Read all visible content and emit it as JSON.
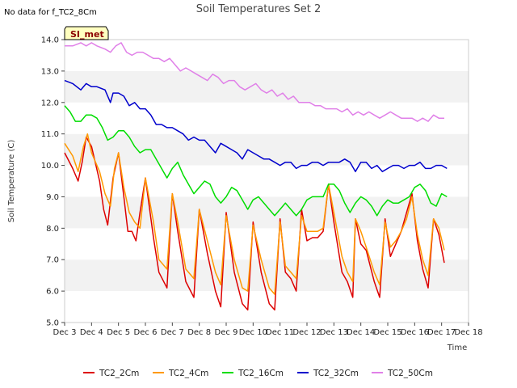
{
  "no_data_text": "No data for f_TC2_8Cm",
  "site_label": "SI_met",
  "chart_data": {
    "type": "line",
    "title": "Soil Temperatures Set 2",
    "xlabel": "Time",
    "ylabel": "Soil Temperature (C)",
    "xlim": [
      3,
      18
    ],
    "ylim": [
      5.0,
      14.0
    ],
    "x_tick_values": [
      3,
      4,
      5,
      6,
      7,
      8,
      9,
      10,
      11,
      12,
      13,
      14,
      15,
      16,
      17,
      18
    ],
    "x_tick_labels": [
      "Dec 3",
      "Dec 4",
      "Dec 5",
      "Dec 6",
      "Dec 7",
      "Dec 8",
      "Dec 9",
      "Dec 10",
      "Dec 11",
      "Dec 12",
      "Dec 13",
      "Dec 14",
      "Dec 15",
      "Dec 16",
      "Dec 17",
      "Dec 18"
    ],
    "y_tick_values": [
      5,
      6,
      7,
      8,
      9,
      10,
      11,
      12,
      13,
      14
    ],
    "y_tick_labels": [
      "5.0",
      "6.0",
      "7.0",
      "8.0",
      "9.0",
      "10.0",
      "11.0",
      "12.0",
      "13.0",
      "14.0"
    ],
    "grid": "horizontal bands",
    "legend_position": "bottom",
    "series": [
      {
        "name": "TC2_2Cm",
        "color": "#dd0000",
        "x": [
          3.0,
          3.3,
          3.5,
          3.65,
          3.8,
          4.0,
          4.3,
          4.45,
          4.6,
          4.8,
          5.0,
          5.2,
          5.35,
          5.5,
          5.65,
          5.8,
          6.0,
          6.3,
          6.5,
          6.8,
          7.0,
          7.2,
          7.5,
          7.8,
          8.0,
          8.3,
          8.6,
          8.8,
          9.0,
          9.3,
          9.6,
          9.8,
          10.0,
          10.3,
          10.6,
          10.8,
          11.0,
          11.2,
          11.4,
          11.6,
          11.8,
          12.0,
          12.2,
          12.4,
          12.6,
          12.8,
          13.0,
          13.3,
          13.5,
          13.7,
          13.8,
          14.0,
          14.2,
          14.5,
          14.7,
          14.9,
          15.1,
          15.3,
          15.5,
          15.7,
          15.9,
          16.1,
          16.3,
          16.5,
          16.7,
          16.9,
          17.1
        ],
        "y": [
          10.4,
          9.9,
          9.5,
          10.1,
          10.9,
          10.6,
          9.5,
          8.6,
          8.1,
          9.6,
          10.4,
          9.0,
          7.9,
          7.9,
          7.6,
          8.5,
          9.6,
          7.7,
          6.6,
          6.1,
          9.1,
          7.9,
          6.3,
          5.8,
          8.6,
          7.2,
          6.0,
          5.5,
          8.5,
          6.6,
          5.6,
          5.4,
          8.2,
          6.6,
          5.6,
          5.4,
          8.3,
          6.6,
          6.4,
          6.0,
          8.6,
          7.6,
          7.7,
          7.7,
          7.9,
          9.4,
          8.2,
          6.6,
          6.3,
          5.8,
          8.3,
          7.5,
          7.3,
          6.3,
          5.8,
          8.3,
          7.1,
          7.5,
          7.9,
          8.5,
          9.1,
          7.6,
          6.7,
          6.1,
          8.3,
          7.8,
          6.9
        ]
      },
      {
        "name": "TC2_4Cm",
        "color": "#ff9900",
        "x": [
          3.0,
          3.3,
          3.5,
          3.7,
          3.85,
          4.0,
          4.3,
          4.5,
          4.7,
          4.85,
          5.0,
          5.2,
          5.4,
          5.6,
          5.8,
          6.0,
          6.3,
          6.5,
          6.8,
          7.0,
          7.2,
          7.5,
          7.8,
          8.0,
          8.3,
          8.6,
          8.8,
          9.0,
          9.3,
          9.6,
          9.8,
          10.0,
          10.3,
          10.6,
          10.8,
          11.0,
          11.2,
          11.4,
          11.6,
          11.8,
          12.0,
          12.2,
          12.4,
          12.6,
          12.8,
          13.0,
          13.3,
          13.5,
          13.7,
          13.8,
          14.0,
          14.2,
          14.5,
          14.7,
          14.9,
          15.1,
          15.3,
          15.5,
          15.7,
          15.9,
          16.1,
          16.3,
          16.5,
          16.7,
          16.9,
          17.1
        ],
        "y": [
          10.7,
          10.3,
          9.8,
          10.6,
          11.0,
          10.4,
          9.8,
          9.1,
          8.7,
          9.9,
          10.4,
          9.3,
          8.5,
          8.2,
          8.0,
          9.6,
          8.2,
          7.0,
          6.7,
          9.1,
          8.2,
          6.7,
          6.4,
          8.6,
          7.6,
          6.6,
          6.2,
          8.4,
          7.0,
          6.1,
          6.0,
          8.1,
          7.0,
          6.1,
          5.9,
          8.2,
          6.8,
          6.6,
          6.4,
          8.4,
          7.9,
          7.9,
          7.9,
          8.0,
          9.4,
          8.5,
          7.1,
          6.6,
          6.3,
          8.3,
          7.9,
          7.4,
          6.6,
          6.2,
          8.2,
          7.4,
          7.6,
          7.9,
          8.3,
          9.0,
          7.8,
          7.0,
          6.5,
          8.3,
          8.0,
          7.3
        ]
      },
      {
        "name": "TC2_16Cm",
        "color": "#00dd00",
        "x": [
          3.0,
          3.2,
          3.4,
          3.6,
          3.8,
          4.0,
          4.2,
          4.4,
          4.6,
          4.8,
          5.0,
          5.2,
          5.4,
          5.6,
          5.8,
          6.0,
          6.2,
          6.4,
          6.6,
          6.8,
          7.0,
          7.2,
          7.4,
          7.6,
          7.8,
          8.0,
          8.2,
          8.4,
          8.6,
          8.8,
          9.0,
          9.2,
          9.4,
          9.6,
          9.8,
          10.0,
          10.2,
          10.4,
          10.6,
          10.8,
          11.0,
          11.2,
          11.4,
          11.6,
          11.8,
          12.0,
          12.2,
          12.4,
          12.6,
          12.8,
          13.0,
          13.2,
          13.4,
          13.6,
          13.8,
          14.0,
          14.2,
          14.4,
          14.6,
          14.8,
          15.0,
          15.2,
          15.4,
          15.6,
          15.8,
          16.0,
          16.2,
          16.4,
          16.6,
          16.8,
          17.0,
          17.2
        ],
        "y": [
          11.9,
          11.7,
          11.4,
          11.4,
          11.6,
          11.6,
          11.5,
          11.2,
          10.8,
          10.9,
          11.1,
          11.1,
          10.9,
          10.6,
          10.4,
          10.5,
          10.5,
          10.2,
          9.9,
          9.6,
          9.9,
          10.1,
          9.7,
          9.4,
          9.1,
          9.3,
          9.5,
          9.4,
          9.0,
          8.8,
          9.0,
          9.3,
          9.2,
          8.9,
          8.6,
          8.9,
          9.0,
          8.8,
          8.6,
          8.4,
          8.6,
          8.8,
          8.6,
          8.4,
          8.6,
          8.9,
          9.0,
          9.0,
          9.0,
          9.4,
          9.4,
          9.2,
          8.8,
          8.5,
          8.8,
          9.0,
          8.9,
          8.7,
          8.4,
          8.7,
          8.9,
          8.8,
          8.8,
          8.9,
          9.0,
          9.3,
          9.4,
          9.2,
          8.8,
          8.7,
          9.1,
          9.0
        ]
      },
      {
        "name": "TC2_32Cm",
        "color": "#0000cc",
        "x": [
          3.0,
          3.3,
          3.6,
          3.8,
          4.0,
          4.2,
          4.5,
          4.7,
          4.8,
          5.0,
          5.2,
          5.4,
          5.6,
          5.8,
          6.0,
          6.2,
          6.4,
          6.6,
          6.8,
          7.0,
          7.2,
          7.4,
          7.6,
          7.8,
          8.0,
          8.2,
          8.4,
          8.6,
          8.8,
          9.0,
          9.2,
          9.4,
          9.6,
          9.8,
          10.0,
          10.2,
          10.4,
          10.6,
          10.8,
          11.0,
          11.2,
          11.4,
          11.6,
          11.8,
          12.0,
          12.2,
          12.4,
          12.6,
          12.8,
          13.0,
          13.2,
          13.4,
          13.6,
          13.8,
          14.0,
          14.2,
          14.4,
          14.6,
          14.8,
          15.0,
          15.2,
          15.4,
          15.6,
          15.8,
          16.0,
          16.2,
          16.4,
          16.6,
          16.8,
          17.0,
          17.2
        ],
        "y": [
          12.7,
          12.6,
          12.4,
          12.6,
          12.5,
          12.5,
          12.4,
          12.0,
          12.3,
          12.3,
          12.2,
          11.9,
          12.0,
          11.8,
          11.8,
          11.6,
          11.3,
          11.3,
          11.2,
          11.2,
          11.1,
          11.0,
          10.8,
          10.9,
          10.8,
          10.8,
          10.6,
          10.4,
          10.7,
          10.6,
          10.5,
          10.4,
          10.2,
          10.5,
          10.4,
          10.3,
          10.2,
          10.2,
          10.1,
          10.0,
          10.1,
          10.1,
          9.9,
          10.0,
          10.0,
          10.1,
          10.1,
          10.0,
          10.1,
          10.1,
          10.1,
          10.2,
          10.1,
          9.8,
          10.1,
          10.1,
          9.9,
          10.0,
          9.8,
          9.9,
          10.0,
          10.0,
          9.9,
          10.0,
          10.0,
          10.1,
          9.9,
          9.9,
          10.0,
          10.0,
          9.9
        ]
      },
      {
        "name": "TC2_50Cm",
        "color": "#e080e8",
        "x": [
          3.0,
          3.3,
          3.6,
          3.8,
          4.0,
          4.2,
          4.5,
          4.7,
          4.9,
          5.1,
          5.3,
          5.5,
          5.7,
          5.9,
          6.1,
          6.3,
          6.5,
          6.7,
          6.9,
          7.1,
          7.3,
          7.5,
          7.7,
          7.9,
          8.1,
          8.3,
          8.5,
          8.7,
          8.9,
          9.1,
          9.3,
          9.5,
          9.7,
          9.9,
          10.1,
          10.3,
          10.5,
          10.7,
          10.9,
          11.1,
          11.3,
          11.5,
          11.7,
          11.9,
          12.1,
          12.3,
          12.5,
          12.7,
          12.9,
          13.1,
          13.3,
          13.5,
          13.7,
          13.9,
          14.1,
          14.3,
          14.5,
          14.7,
          14.9,
          15.1,
          15.3,
          15.5,
          15.7,
          15.9,
          16.1,
          16.3,
          16.5,
          16.7,
          16.9,
          17.1
        ],
        "y": [
          13.8,
          13.8,
          13.9,
          13.8,
          13.9,
          13.8,
          13.7,
          13.6,
          13.8,
          13.9,
          13.6,
          13.5,
          13.6,
          13.6,
          13.5,
          13.4,
          13.4,
          13.3,
          13.4,
          13.2,
          13.0,
          13.1,
          13.0,
          12.9,
          12.8,
          12.7,
          12.9,
          12.8,
          12.6,
          12.7,
          12.7,
          12.5,
          12.4,
          12.5,
          12.6,
          12.4,
          12.3,
          12.4,
          12.2,
          12.3,
          12.1,
          12.2,
          12.0,
          12.0,
          12.0,
          11.9,
          11.9,
          11.8,
          11.8,
          11.8,
          11.7,
          11.8,
          11.6,
          11.7,
          11.6,
          11.7,
          11.6,
          11.5,
          11.6,
          11.7,
          11.6,
          11.5,
          11.5,
          11.5,
          11.4,
          11.5,
          11.4,
          11.6,
          11.5,
          11.5
        ]
      }
    ]
  }
}
